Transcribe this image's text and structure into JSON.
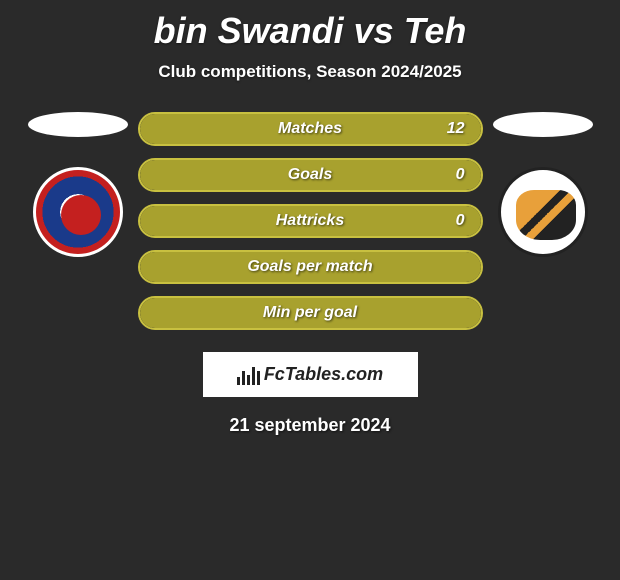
{
  "title": "bin Swandi vs Teh",
  "subtitle": "Club competitions, Season 2024/2025",
  "date": "21 september 2024",
  "fctables": "FcTables.com",
  "accent_color": "#a8a12e",
  "accent_border": "#c8c040",
  "stats": [
    {
      "label": "Matches",
      "left_fill_pct": 0,
      "right_fill_pct": 100,
      "right_value": "12"
    },
    {
      "label": "Goals",
      "left_fill_pct": 0,
      "right_fill_pct": 100,
      "right_value": "0"
    },
    {
      "label": "Hattricks",
      "left_fill_pct": 0,
      "right_fill_pct": 100,
      "right_value": "0"
    },
    {
      "label": "Goals per match",
      "left_fill_pct": 0,
      "right_fill_pct": 100,
      "right_value": ""
    },
    {
      "label": "Min per goal",
      "left_fill_pct": 0,
      "right_fill_pct": 100,
      "right_value": ""
    }
  ],
  "left_club": "Home United",
  "right_club": "Balestier Khalsa"
}
